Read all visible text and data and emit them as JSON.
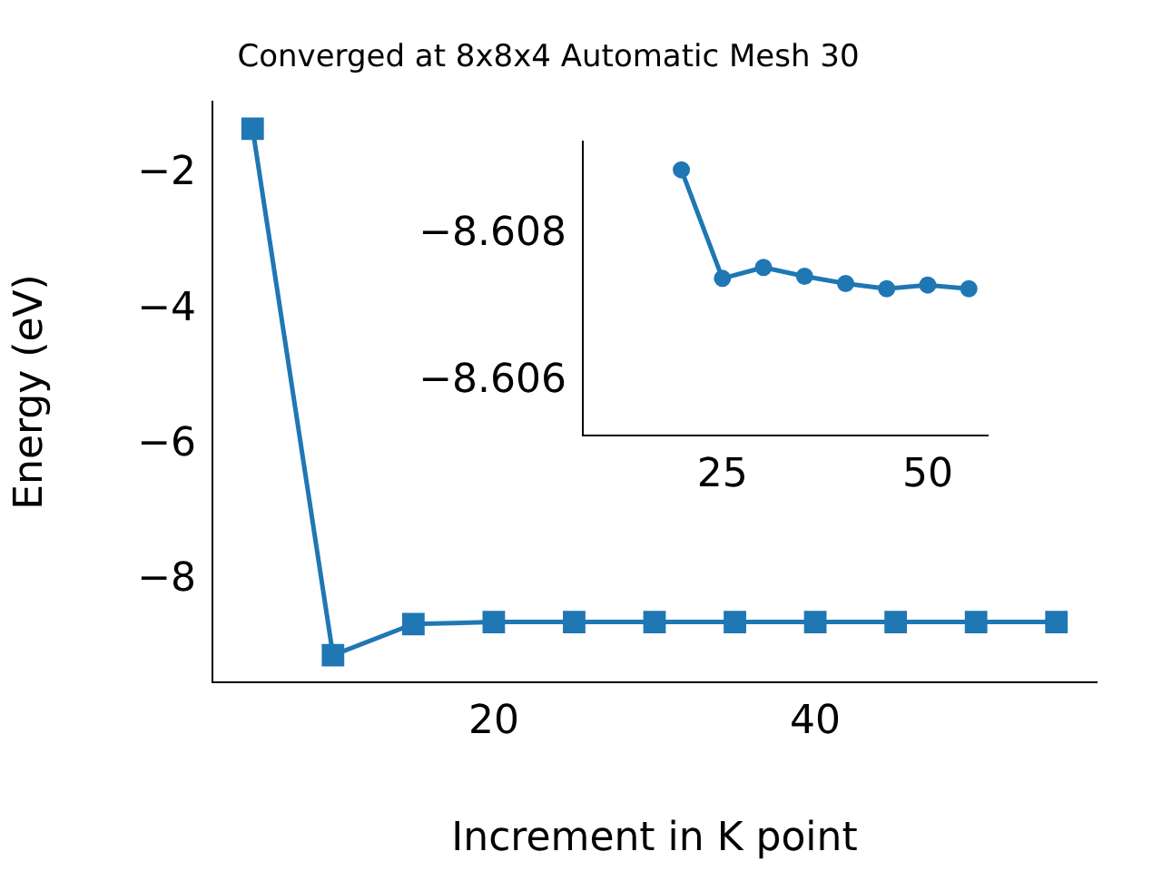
{
  "chart_data": [
    {
      "type": "line",
      "title": "Converged at 8x8x4 Automatic Mesh 30",
      "xlabel": "Increment in K point",
      "ylabel": "Energy (eV)",
      "marker": "square",
      "x": [
        5,
        10,
        15,
        20,
        25,
        30,
        35,
        40,
        45,
        50,
        55
      ],
      "series": [
        {
          "color": "#1f77b4",
          "values": [
            -1.33,
            -9.1,
            -8.64,
            -8.61,
            -8.61,
            -8.61,
            -8.61,
            -8.61,
            -8.61,
            -8.61,
            -8.61
          ]
        }
      ],
      "xlim": [
        2.5,
        57.5
      ],
      "ylim": [
        -9.5,
        -0.93
      ],
      "xticks": [
        20,
        40
      ],
      "yticks": [
        {
          "value": -8,
          "label": "−8"
        },
        {
          "value": -6,
          "label": "−6"
        },
        {
          "value": -4,
          "label": "−4"
        },
        {
          "value": -2,
          "label": "−2"
        }
      ]
    },
    {
      "type": "line",
      "marker": "circle",
      "x": [
        20,
        25,
        30,
        35,
        40,
        45,
        50,
        55
      ],
      "series": [
        {
          "color": "#1f77b4",
          "values": [
            -8.60888,
            -8.6074,
            -8.60755,
            -8.60743,
            -8.60733,
            -8.60726,
            -8.60731,
            -8.60726
          ]
        }
      ],
      "xlim": [
        8,
        57.3
      ],
      "ylim": [
        -8.60526,
        -8.60926
      ],
      "xticks": [
        25,
        50
      ],
      "yticks": [
        {
          "value": -8.608,
          "label": "−8.608"
        },
        {
          "value": -8.606,
          "label": "−8.606"
        }
      ]
    }
  ]
}
